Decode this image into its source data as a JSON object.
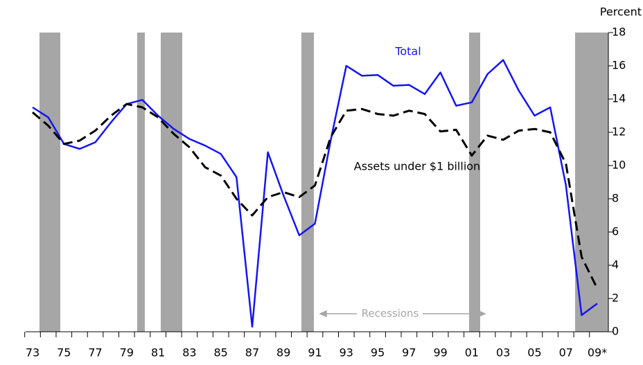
{
  "chart_data": {
    "type": "line",
    "y_label": "Percent",
    "annotation": "Recessions",
    "categories": [
      "73",
      null,
      "75",
      null,
      "77",
      null,
      "79",
      null,
      "81",
      null,
      "83",
      null,
      "85",
      null,
      "87",
      null,
      "89",
      null,
      "91",
      null,
      "93",
      null,
      "95",
      null,
      "97",
      null,
      "99",
      null,
      "01",
      null,
      "03",
      null,
      "05",
      null,
      "07",
      null,
      "09*"
    ],
    "series": [
      {
        "name": "Total",
        "color": "#1414f0",
        "dashed": false,
        "values": [
          13.5,
          12.9,
          11.3,
          11.0,
          11.4,
          12.6,
          13.7,
          13.95,
          13.0,
          12.2,
          11.6,
          11.2,
          10.7,
          9.3,
          0.3,
          10.8,
          8.2,
          5.8,
          6.5,
          11.5,
          16.0,
          15.4,
          15.45,
          14.8,
          14.85,
          14.3,
          15.6,
          13.6,
          13.8,
          15.5,
          16.35,
          14.5,
          13.0,
          13.5,
          8.8,
          1.0,
          1.7
        ]
      },
      {
        "name": "Assets under $1 billion",
        "color": "#000000",
        "dashed": true,
        "values": [
          13.2,
          12.4,
          11.3,
          11.5,
          12.1,
          13.0,
          13.7,
          13.5,
          12.9,
          11.9,
          11.1,
          9.9,
          9.4,
          8.0,
          7.0,
          8.1,
          8.4,
          8.1,
          8.8,
          11.7,
          13.3,
          13.4,
          13.1,
          13.0,
          13.3,
          13.1,
          12.05,
          12.15,
          10.6,
          11.8,
          11.55,
          12.1,
          12.2,
          12.0,
          10.1,
          4.5,
          2.6
        ]
      }
    ],
    "ylim": [
      0,
      18
    ],
    "yticks": [
      0,
      2,
      4,
      6,
      8,
      10,
      12,
      14,
      16,
      18
    ]
  }
}
